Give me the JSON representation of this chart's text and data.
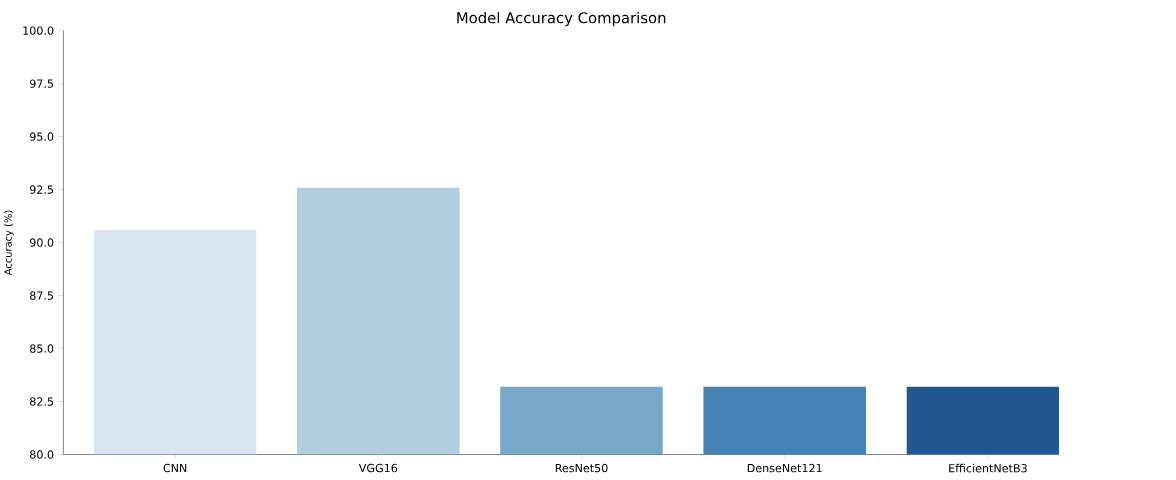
{
  "chart_data": {
    "type": "bar",
    "title": "Model Accuracy Comparison",
    "ylabel": "Accuracy (%)",
    "categories": [
      "CNN",
      "VGG16",
      "ResNet50",
      "DenseNet121",
      "EfficientNetB3"
    ],
    "values": [
      90.6,
      92.6,
      83.2,
      83.2,
      83.2
    ],
    "colors": [
      "#d9e5f2",
      "#b2cedf",
      "#77a8c9",
      "#4681b3",
      "#215891"
    ],
    "ylim": [
      80,
      100
    ],
    "yticks": [
      {
        "value": 80,
        "label": "80.0"
      },
      {
        "value": 82.5,
        "label": "82.5"
      },
      {
        "value": 85,
        "label": "85.0"
      },
      {
        "value": 87.5,
        "label": "87.5"
      },
      {
        "value": 90,
        "label": "90.0"
      },
      {
        "value": 92.5,
        "label": "92.5"
      },
      {
        "value": 95,
        "label": "95.0"
      },
      {
        "value": 97.5,
        "label": "97.5"
      },
      {
        "value": 100,
        "label": "100.0"
      }
    ],
    "grid": false
  }
}
